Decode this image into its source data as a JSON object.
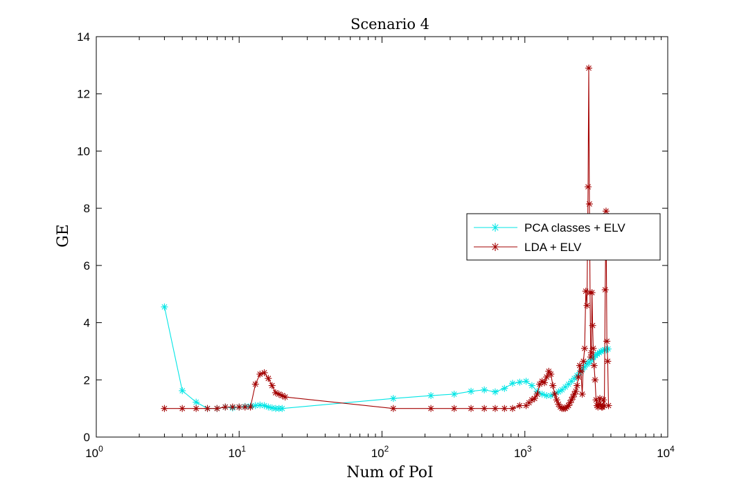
{
  "chart_data": {
    "type": "line",
    "title": "Scenario 4",
    "xlabel": "Num of PoI",
    "ylabel": "GE",
    "xscale": "log",
    "xlim": [
      1,
      10000
    ],
    "ylim": [
      0,
      14
    ],
    "x_tick_labels": [
      {
        "value": 1,
        "base": "10",
        "exp": "0"
      },
      {
        "value": 10,
        "base": "10",
        "exp": "1"
      },
      {
        "value": 100,
        "base": "10",
        "exp": "2"
      },
      {
        "value": 1000,
        "base": "10",
        "exp": "3"
      },
      {
        "value": 10000,
        "base": "10",
        "exp": "4"
      }
    ],
    "y_ticks": [
      0,
      2,
      4,
      6,
      8,
      10,
      12,
      14
    ],
    "grid": false,
    "legend": {
      "position": "right",
      "entries": [
        "PCA classes + ELV",
        "LDA + ELV"
      ]
    },
    "colors": {
      "PCA classes + ELV": "#00e5e5",
      "LDA + ELV": "#a30000",
      "axes": "#000000"
    },
    "series": [
      {
        "name": "PCA classes + ELV",
        "marker": "asterisk",
        "x": [
          3,
          4,
          5,
          6,
          7,
          8,
          9,
          10,
          11,
          12,
          13,
          14,
          15,
          16,
          17,
          18,
          19,
          20,
          120,
          220,
          320,
          420,
          520,
          620,
          720,
          820,
          920,
          1020,
          1120,
          1220,
          1320,
          1420,
          1520,
          1620,
          1720,
          1820,
          1920,
          2020,
          2120,
          2220,
          2320,
          2420,
          2520,
          2620,
          2720,
          2820,
          2920,
          3020,
          3120,
          3220,
          3320,
          3420,
          3520,
          3620,
          3720,
          3820
        ],
        "y": [
          4.55,
          1.62,
          1.22,
          1.0,
          1.0,
          1.05,
          1.02,
          1.05,
          1.07,
          1.08,
          1.1,
          1.12,
          1.1,
          1.05,
          1.02,
          1.0,
          1.0,
          1.0,
          1.35,
          1.45,
          1.5,
          1.6,
          1.65,
          1.58,
          1.7,
          1.88,
          1.92,
          1.95,
          1.8,
          1.6,
          1.5,
          1.45,
          1.45,
          1.5,
          1.58,
          1.65,
          1.75,
          1.85,
          1.95,
          2.05,
          2.15,
          2.25,
          2.35,
          2.45,
          2.55,
          2.62,
          2.7,
          2.78,
          2.85,
          2.9,
          2.95,
          3.0,
          3.02,
          3.05,
          3.05,
          3.08
        ]
      },
      {
        "name": "LDA + ELV",
        "marker": "asterisk",
        "x": [
          3,
          4,
          5,
          6,
          7,
          8,
          9,
          10,
          11,
          12,
          13,
          14,
          15,
          16,
          17,
          18,
          19,
          20,
          21,
          120,
          220,
          320,
          420,
          520,
          620,
          720,
          820,
          920,
          1020,
          1070,
          1120,
          1170,
          1220,
          1270,
          1320,
          1370,
          1420,
          1470,
          1520,
          1570,
          1620,
          1670,
          1720,
          1770,
          1820,
          1870,
          1920,
          1970,
          2020,
          2070,
          2120,
          2170,
          2220,
          2270,
          2320,
          2370,
          2420,
          2470,
          2520,
          2570,
          2620,
          2670,
          2720,
          2770,
          2800,
          2830,
          2860,
          2890,
          2920,
          2950,
          2980,
          3010,
          3050,
          3100,
          3150,
          3200,
          3250,
          3300,
          3350,
          3400,
          3450,
          3500,
          3550,
          3600,
          3650,
          3700,
          3750,
          3800,
          3850
        ],
        "y": [
          1.0,
          1.0,
          1.0,
          1.0,
          1.0,
          1.05,
          1.05,
          1.05,
          1.05,
          1.05,
          1.85,
          2.2,
          2.25,
          2.05,
          1.8,
          1.55,
          1.5,
          1.45,
          1.4,
          1.0,
          1.0,
          1.0,
          1.0,
          1.0,
          1.0,
          1.0,
          1.0,
          1.1,
          1.1,
          1.2,
          1.3,
          1.35,
          1.5,
          1.85,
          1.95,
          1.9,
          2.1,
          2.3,
          2.2,
          1.8,
          1.5,
          1.3,
          1.15,
          1.05,
          1.0,
          1.0,
          1.0,
          1.05,
          1.1,
          1.2,
          1.3,
          1.4,
          1.5,
          1.6,
          1.8,
          2.1,
          2.5,
          2.3,
          1.5,
          2.65,
          3.1,
          5.1,
          4.6,
          8.75,
          12.9,
          8.15,
          5.05,
          2.8,
          2.95,
          5.05,
          3.9,
          3.1,
          2.5,
          2.0,
          1.3,
          1.1,
          1.05,
          1.15,
          1.35,
          1.1,
          1.05,
          1.05,
          1.3,
          1.1,
          5.15,
          7.9,
          3.35,
          2.65,
          1.1
        ]
      }
    ]
  }
}
